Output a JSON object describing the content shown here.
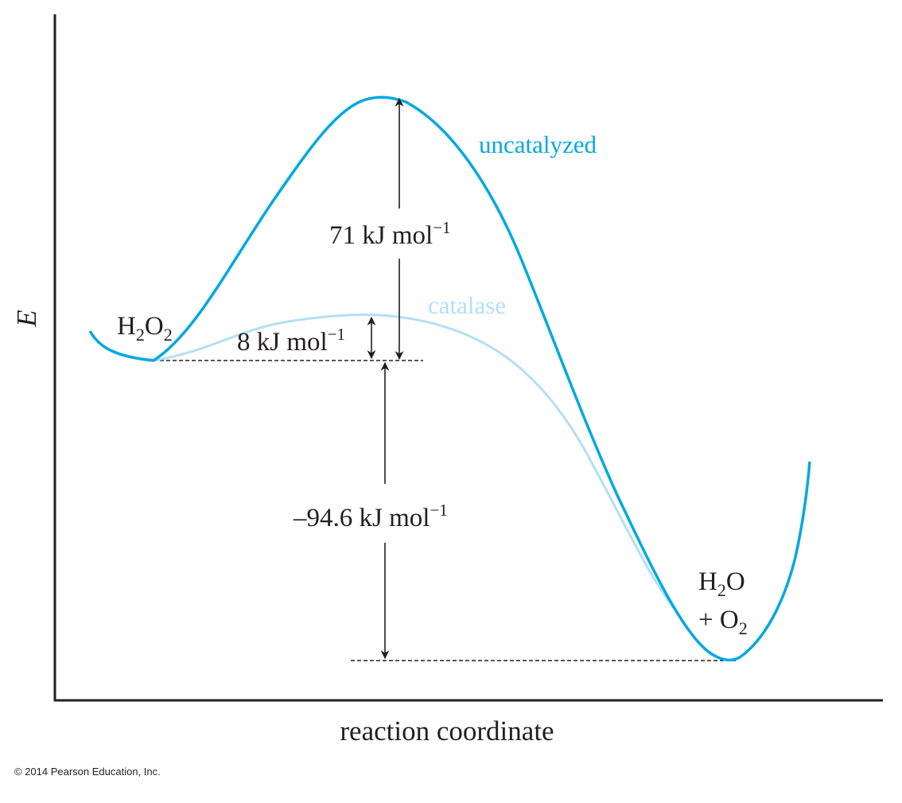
{
  "axes": {
    "y_label": "E",
    "x_label": "reaction coordinate"
  },
  "curves": {
    "uncatalyzed": {
      "label": "uncatalyzed",
      "color": "#00a8e1"
    },
    "catalase": {
      "label": "catalase",
      "color": "#b3dff5"
    }
  },
  "species": {
    "reactant": {
      "main": "H",
      "sub1": "2",
      "mid": "O",
      "sub2": "2"
    },
    "product": {
      "line1_main": "H",
      "line1_sub": "2",
      "line1_end": "O",
      "line2_main": "+ O",
      "line2_sub": "2"
    }
  },
  "energies": {
    "uncatalyzed": {
      "value": "71 kJ mol",
      "exp": "−1"
    },
    "catalyzed": {
      "value": "8 kJ mol",
      "exp": "−1"
    },
    "reaction": {
      "value": "–94.6 kJ mol",
      "exp": "−1"
    }
  },
  "copyright": "© 2014 Pearson Education, Inc."
}
